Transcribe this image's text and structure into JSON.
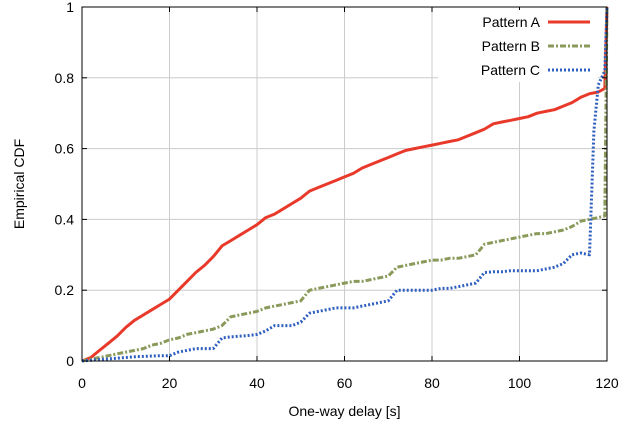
{
  "chart_data": {
    "type": "line",
    "title": "",
    "xlabel": "One-way delay [s]",
    "ylabel": "Empirical CDF",
    "xlim": [
      0,
      120
    ],
    "ylim": [
      0,
      1
    ],
    "x_ticks": [
      "0",
      "20",
      "40",
      "60",
      "80",
      "100",
      "120"
    ],
    "y_ticks": [
      "0",
      "0.2",
      "0.4",
      "0.6",
      "0.8",
      "1"
    ],
    "grid": true,
    "legend_position": "top-right",
    "series": [
      {
        "name": "Pattern A",
        "color": "#e8392a",
        "style": "solid",
        "points": [
          [
            0,
            0
          ],
          [
            2,
            0.01
          ],
          [
            4,
            0.03
          ],
          [
            6,
            0.05
          ],
          [
            8,
            0.07
          ],
          [
            10,
            0.095
          ],
          [
            12,
            0.115
          ],
          [
            14,
            0.13
          ],
          [
            16,
            0.145
          ],
          [
            18,
            0.16
          ],
          [
            20,
            0.175
          ],
          [
            22,
            0.2
          ],
          [
            24,
            0.225
          ],
          [
            26,
            0.25
          ],
          [
            28,
            0.27
          ],
          [
            30,
            0.295
          ],
          [
            32,
            0.325
          ],
          [
            34,
            0.34
          ],
          [
            36,
            0.355
          ],
          [
            38,
            0.37
          ],
          [
            40,
            0.385
          ],
          [
            42,
            0.405
          ],
          [
            44,
            0.415
          ],
          [
            46,
            0.43
          ],
          [
            48,
            0.445
          ],
          [
            50,
            0.46
          ],
          [
            52,
            0.48
          ],
          [
            54,
            0.49
          ],
          [
            56,
            0.5
          ],
          [
            58,
            0.51
          ],
          [
            60,
            0.52
          ],
          [
            62,
            0.53
          ],
          [
            64,
            0.545
          ],
          [
            66,
            0.555
          ],
          [
            68,
            0.565
          ],
          [
            70,
            0.575
          ],
          [
            72,
            0.585
          ],
          [
            74,
            0.595
          ],
          [
            76,
            0.6
          ],
          [
            78,
            0.605
          ],
          [
            80,
            0.61
          ],
          [
            82,
            0.615
          ],
          [
            84,
            0.62
          ],
          [
            86,
            0.625
          ],
          [
            88,
            0.635
          ],
          [
            90,
            0.645
          ],
          [
            92,
            0.655
          ],
          [
            94,
            0.67
          ],
          [
            96,
            0.675
          ],
          [
            98,
            0.68
          ],
          [
            100,
            0.685
          ],
          [
            102,
            0.69
          ],
          [
            104,
            0.7
          ],
          [
            106,
            0.705
          ],
          [
            108,
            0.71
          ],
          [
            110,
            0.72
          ],
          [
            112,
            0.73
          ],
          [
            114,
            0.745
          ],
          [
            116,
            0.755
          ],
          [
            118,
            0.76
          ],
          [
            119.5,
            0.77
          ],
          [
            120,
            1
          ]
        ]
      },
      {
        "name": "Pattern B",
        "color": "#8a9a5b",
        "style": "dash-dot",
        "points": [
          [
            0,
            0
          ],
          [
            2,
            0.005
          ],
          [
            4,
            0.01
          ],
          [
            6,
            0.015
          ],
          [
            8,
            0.02
          ],
          [
            10,
            0.025
          ],
          [
            12,
            0.03
          ],
          [
            14,
            0.035
          ],
          [
            16,
            0.045
          ],
          [
            18,
            0.05
          ],
          [
            20,
            0.06
          ],
          [
            22,
            0.065
          ],
          [
            24,
            0.075
          ],
          [
            26,
            0.08
          ],
          [
            28,
            0.085
          ],
          [
            30,
            0.09
          ],
          [
            32,
            0.1
          ],
          [
            34,
            0.125
          ],
          [
            36,
            0.13
          ],
          [
            38,
            0.135
          ],
          [
            40,
            0.14
          ],
          [
            42,
            0.15
          ],
          [
            44,
            0.155
          ],
          [
            46,
            0.16
          ],
          [
            48,
            0.165
          ],
          [
            50,
            0.17
          ],
          [
            52,
            0.2
          ],
          [
            54,
            0.205
          ],
          [
            56,
            0.21
          ],
          [
            58,
            0.215
          ],
          [
            60,
            0.22
          ],
          [
            62,
            0.225
          ],
          [
            64,
            0.225
          ],
          [
            66,
            0.23
          ],
          [
            68,
            0.235
          ],
          [
            70,
            0.24
          ],
          [
            72,
            0.265
          ],
          [
            74,
            0.27
          ],
          [
            76,
            0.275
          ],
          [
            78,
            0.28
          ],
          [
            80,
            0.285
          ],
          [
            82,
            0.285
          ],
          [
            84,
            0.29
          ],
          [
            86,
            0.29
          ],
          [
            88,
            0.295
          ],
          [
            90,
            0.3
          ],
          [
            92,
            0.33
          ],
          [
            94,
            0.335
          ],
          [
            96,
            0.34
          ],
          [
            98,
            0.345
          ],
          [
            100,
            0.35
          ],
          [
            102,
            0.355
          ],
          [
            104,
            0.36
          ],
          [
            106,
            0.36
          ],
          [
            108,
            0.365
          ],
          [
            110,
            0.37
          ],
          [
            112,
            0.38
          ],
          [
            114,
            0.395
          ],
          [
            116,
            0.4
          ],
          [
            118,
            0.405
          ],
          [
            119.5,
            0.41
          ],
          [
            120,
            1
          ]
        ]
      },
      {
        "name": "Pattern C",
        "color": "#2f5fbf",
        "style": "dotted",
        "points": [
          [
            0,
            0
          ],
          [
            2,
            0.002
          ],
          [
            4,
            0.004
          ],
          [
            6,
            0.006
          ],
          [
            8,
            0.008
          ],
          [
            10,
            0.01
          ],
          [
            12,
            0.012
          ],
          [
            14,
            0.013
          ],
          [
            16,
            0.014
          ],
          [
            18,
            0.015
          ],
          [
            20,
            0.015
          ],
          [
            22,
            0.025
          ],
          [
            24,
            0.03
          ],
          [
            26,
            0.035
          ],
          [
            28,
            0.035
          ],
          [
            30,
            0.035
          ],
          [
            32,
            0.065
          ],
          [
            34,
            0.068
          ],
          [
            36,
            0.07
          ],
          [
            38,
            0.072
          ],
          [
            40,
            0.075
          ],
          [
            42,
            0.085
          ],
          [
            44,
            0.1
          ],
          [
            46,
            0.1
          ],
          [
            48,
            0.1
          ],
          [
            50,
            0.11
          ],
          [
            52,
            0.135
          ],
          [
            54,
            0.14
          ],
          [
            56,
            0.145
          ],
          [
            58,
            0.15
          ],
          [
            60,
            0.15
          ],
          [
            62,
            0.15
          ],
          [
            64,
            0.155
          ],
          [
            66,
            0.16
          ],
          [
            68,
            0.165
          ],
          [
            70,
            0.17
          ],
          [
            72,
            0.2
          ],
          [
            74,
            0.2
          ],
          [
            76,
            0.2
          ],
          [
            78,
            0.2
          ],
          [
            80,
            0.2
          ],
          [
            82,
            0.205
          ],
          [
            84,
            0.205
          ],
          [
            86,
            0.21
          ],
          [
            88,
            0.215
          ],
          [
            90,
            0.22
          ],
          [
            92,
            0.25
          ],
          [
            94,
            0.252
          ],
          [
            96,
            0.252
          ],
          [
            98,
            0.255
          ],
          [
            100,
            0.255
          ],
          [
            102,
            0.255
          ],
          [
            104,
            0.255
          ],
          [
            106,
            0.26
          ],
          [
            108,
            0.265
          ],
          [
            110,
            0.275
          ],
          [
            112,
            0.3
          ],
          [
            114,
            0.305
          ],
          [
            116,
            0.3
          ],
          [
            117,
            0.65
          ],
          [
            118,
            0.78
          ],
          [
            119.5,
            0.82
          ],
          [
            120,
            1
          ]
        ]
      }
    ]
  }
}
